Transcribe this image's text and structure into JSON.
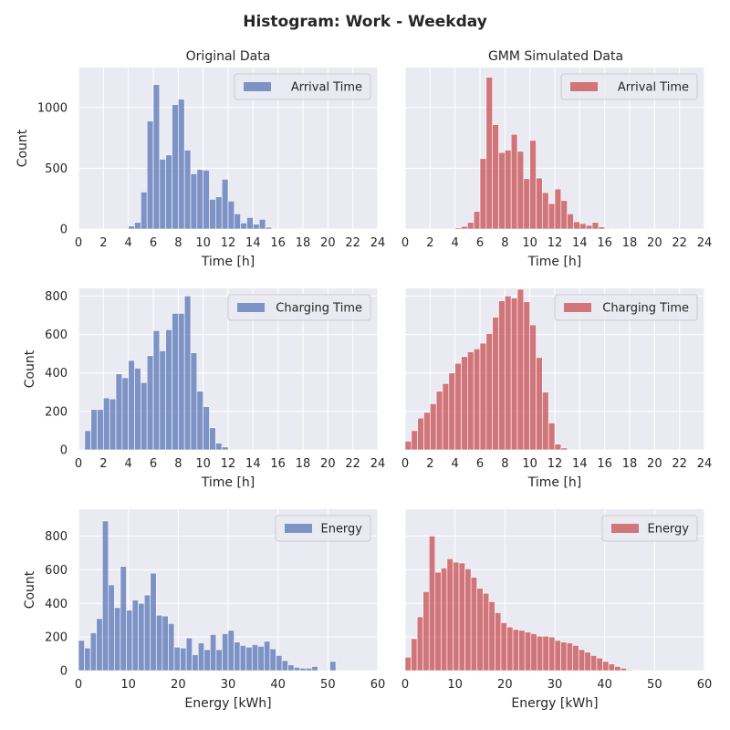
{
  "figure": {
    "title": "Histogram: Work - Weekday",
    "column_titles": [
      "Original Data",
      "GMM Simulated Data"
    ]
  },
  "colors": {
    "original": "#5975b5",
    "simulated": "#c74e51",
    "panel_bg": "#eaeaf2",
    "grid": "#ffffff"
  },
  "chart_data": [
    {
      "id": "arrival-original",
      "type": "bar",
      "title": "Original Data",
      "legend": "Arrival Time",
      "legend_position": "top-right",
      "xlabel": "Time [h]",
      "ylabel": "Count",
      "xlim": [
        0,
        24
      ],
      "ylim": [
        0,
        1330
      ],
      "xticks": [
        0,
        2,
        4,
        6,
        8,
        10,
        12,
        14,
        16,
        18,
        20,
        22,
        24
      ],
      "yticks": [
        0,
        500,
        1000
      ],
      "bin_start": 0,
      "bin_width": 0.5,
      "values": [
        0,
        0,
        0,
        0,
        0,
        0,
        0,
        0,
        25,
        55,
        305,
        890,
        1190,
        575,
        610,
        1025,
        1070,
        650,
        455,
        490,
        485,
        245,
        265,
        410,
        230,
        125,
        50,
        95,
        40,
        80,
        15,
        0,
        0,
        0,
        0,
        0,
        0,
        0,
        0,
        0,
        0,
        0,
        0,
        0,
        0,
        0,
        0,
        0
      ]
    },
    {
      "id": "arrival-simulated",
      "type": "bar",
      "title": "GMM Simulated Data",
      "legend": "Arrival Time",
      "legend_position": "top-right",
      "xlabel": "Time [h]",
      "ylabel": "",
      "xlim": [
        0,
        24
      ],
      "ylim": [
        0,
        1330
      ],
      "xticks": [
        0,
        2,
        4,
        6,
        8,
        10,
        12,
        14,
        16,
        18,
        20,
        22,
        24
      ],
      "yticks": [
        0,
        500,
        1000
      ],
      "bin_start": 0,
      "bin_width": 0.5,
      "values": [
        0,
        0,
        0,
        0,
        0,
        0,
        0,
        2,
        10,
        22,
        55,
        145,
        580,
        1250,
        860,
        630,
        650,
        780,
        640,
        415,
        730,
        420,
        300,
        210,
        330,
        235,
        125,
        60,
        45,
        30,
        55,
        18,
        6,
        0,
        0,
        0,
        0,
        0,
        0,
        0,
        0,
        0,
        0,
        0,
        0,
        0,
        0,
        0
      ]
    },
    {
      "id": "charging-original",
      "type": "bar",
      "legend": "Charging Time",
      "legend_position": "top-right",
      "xlabel": "Time [h]",
      "ylabel": "Count",
      "xlim": [
        0,
        24
      ],
      "ylim": [
        0,
        840
      ],
      "xticks": [
        0,
        2,
        4,
        6,
        8,
        10,
        12,
        14,
        16,
        18,
        20,
        22,
        24
      ],
      "yticks": [
        0,
        200,
        400,
        600,
        800
      ],
      "bin_start": 0,
      "bin_width": 0.5,
      "values": [
        0,
        100,
        210,
        210,
        270,
        265,
        395,
        375,
        465,
        425,
        350,
        490,
        620,
        515,
        625,
        710,
        710,
        800,
        505,
        305,
        225,
        115,
        35,
        15,
        0,
        0,
        0,
        0,
        0,
        0,
        0,
        0,
        0,
        0,
        0,
        0,
        0,
        0,
        0,
        0,
        0,
        0,
        0,
        0,
        0,
        0,
        0,
        0
      ]
    },
    {
      "id": "charging-simulated",
      "type": "bar",
      "legend": "Charging Time",
      "legend_position": "top-right",
      "xlabel": "Time [h]",
      "ylabel": "",
      "xlim": [
        0,
        24
      ],
      "ylim": [
        0,
        840
      ],
      "xticks": [
        0,
        2,
        4,
        6,
        8,
        10,
        12,
        14,
        16,
        18,
        20,
        22,
        24
      ],
      "yticks": [
        0,
        200,
        400,
        600,
        800
      ],
      "bin_start": 0,
      "bin_width": 0.5,
      "values": [
        45,
        100,
        165,
        195,
        240,
        305,
        345,
        400,
        450,
        485,
        510,
        525,
        555,
        605,
        690,
        775,
        800,
        790,
        835,
        770,
        650,
        480,
        300,
        140,
        30,
        10,
        0,
        0,
        0,
        0,
        0,
        0,
        0,
        0,
        0,
        0,
        0,
        0,
        0,
        0,
        0,
        0,
        0,
        0,
        0,
        0,
        0,
        0
      ]
    },
    {
      "id": "energy-original",
      "type": "bar",
      "legend": "Energy",
      "legend_position": "top-right",
      "xlabel": "Energy [kWh]",
      "ylabel": "Count",
      "xlim": [
        0,
        60
      ],
      "ylim": [
        0,
        960
      ],
      "xticks": [
        0,
        10,
        20,
        30,
        40,
        50,
        60
      ],
      "yticks": [
        0,
        200,
        400,
        600,
        800
      ],
      "bin_start": 0,
      "bin_width": 1.2,
      "values": [
        180,
        135,
        225,
        310,
        890,
        510,
        375,
        620,
        360,
        420,
        400,
        450,
        580,
        330,
        325,
        280,
        140,
        135,
        195,
        95,
        165,
        125,
        215,
        125,
        220,
        240,
        170,
        150,
        140,
        155,
        145,
        175,
        130,
        90,
        60,
        35,
        20,
        15,
        15,
        25,
        0,
        0,
        55,
        0,
        0,
        0,
        0,
        0,
        0,
        0
      ]
    },
    {
      "id": "energy-simulated",
      "type": "bar",
      "legend": "Energy",
      "legend_position": "top-right",
      "xlabel": "Energy [kWh]",
      "ylabel": "",
      "xlim": [
        0,
        60
      ],
      "ylim": [
        0,
        960
      ],
      "xticks": [
        0,
        10,
        20,
        30,
        40,
        50,
        60
      ],
      "yticks": [
        0,
        200,
        400,
        600,
        800
      ],
      "bin_start": 0,
      "bin_width": 1.2,
      "values": [
        80,
        190,
        320,
        470,
        800,
        585,
        610,
        665,
        645,
        640,
        605,
        555,
        490,
        460,
        410,
        345,
        285,
        260,
        245,
        240,
        230,
        220,
        205,
        205,
        200,
        180,
        170,
        165,
        150,
        125,
        110,
        90,
        75,
        55,
        40,
        25,
        15,
        5,
        3,
        0,
        0,
        0,
        0,
        0,
        0,
        0,
        0,
        0,
        0,
        0
      ]
    }
  ]
}
